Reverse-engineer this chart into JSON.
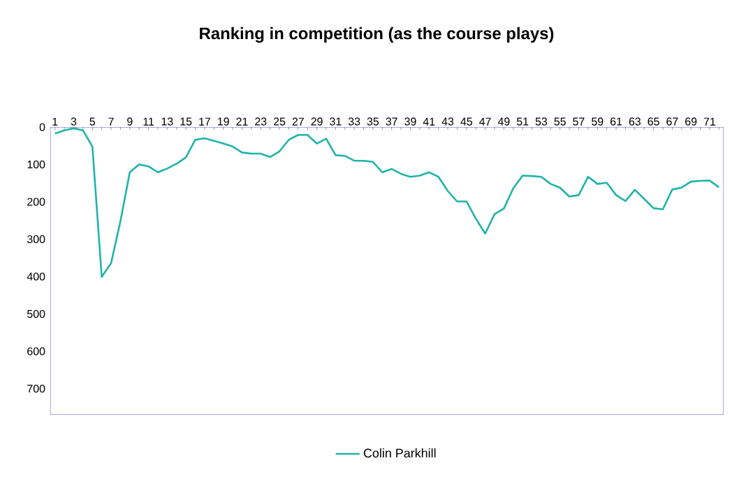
{
  "chart_data": {
    "type": "line",
    "title": "Ranking in competition (as the course plays)",
    "categories": [
      "1",
      null,
      "3",
      null,
      "5",
      null,
      "7",
      null,
      "9",
      null,
      "11",
      null,
      "13",
      null,
      "15",
      null,
      "17",
      null,
      "19",
      null,
      "21",
      null,
      "23",
      null,
      "25",
      null,
      "27",
      null,
      "29",
      null,
      "31",
      null,
      "33",
      null,
      "35",
      null,
      "37",
      null,
      "39",
      null,
      "41",
      null,
      "43",
      null,
      "45",
      null,
      "47",
      null,
      "49",
      null,
      "51",
      null,
      "53",
      null,
      "55",
      null,
      "57",
      null,
      "59",
      null,
      "61",
      null,
      "63",
      null,
      "65",
      null,
      "67",
      null,
      "69",
      null,
      "71",
      null
    ],
    "series": [
      {
        "name": "Colin Parkhill",
        "color": "#1fb3aa",
        "values": [
          17,
          9,
          3,
          9,
          52,
          401,
          364,
          252,
          121,
          100,
          105,
          121,
          111,
          98,
          81,
          34,
          30,
          37,
          44,
          52,
          68,
          71,
          71,
          80,
          65,
          34,
          21,
          21,
          44,
          31,
          75,
          77,
          90,
          90,
          93,
          121,
          112,
          125,
          133,
          130,
          121,
          133,
          171,
          199,
          199,
          245,
          285,
          233,
          218,
          164,
          130,
          131,
          133,
          152,
          162,
          186,
          182,
          133,
          152,
          149,
          182,
          198,
          168,
          192,
          217,
          220,
          167,
          162,
          146,
          144,
          143,
          161
        ]
      }
    ],
    "ylim": [
      770,
      0
    ],
    "yticks": [
      0,
      100,
      200,
      300,
      400,
      500,
      600,
      700
    ],
    "grid": false,
    "legend": "bottom",
    "marker": "none",
    "line_style": "solid"
  }
}
